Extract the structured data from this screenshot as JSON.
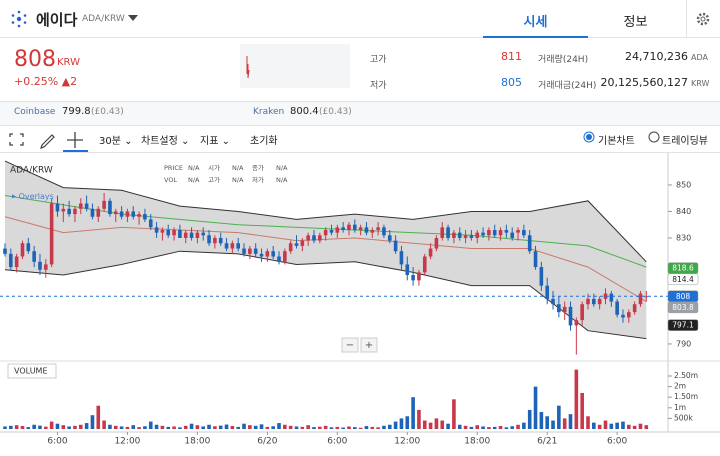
{
  "header": {
    "name": "에이다",
    "pair": "ADA/KRW",
    "tabs": [
      "시세",
      "정보"
    ]
  },
  "ticker": {
    "price": 808,
    "unit": "KRW",
    "change": "+0.25%",
    "change_amount": "▲2",
    "high_label": "고가",
    "high": 811,
    "low_label": "저가",
    "low": 805,
    "volume_label": "거래량(24H)",
    "volume": "24,710,236",
    "volume_unit": "ADA",
    "value_label": "거래대금(24H)",
    "value": "20,125,560,127",
    "value_unit": "KRW"
  },
  "exchanges": [
    {
      "name": "Coinbase",
      "price": 799.8,
      "converted": "(£0.43)"
    },
    {
      "name": "Kraken",
      "price": 800.4,
      "converted": "(£0.43)"
    }
  ],
  "toolbar": {
    "interval": "30분",
    "settings": "차트설정",
    "indicators": "지표",
    "reset": "초기화",
    "modes": [
      "기본차트",
      "트레이딩뷰"
    ]
  },
  "chart": {
    "type": "candlestick",
    "symbol": "ADA/KRW",
    "overlays": "Overlays",
    "info_labels": [
      [
        "PRICE",
        "시가",
        "종가"
      ],
      [
        "VOL",
        "고가",
        "저가"
      ]
    ],
    "info_value": "N/A",
    "volume_title": "VOLUME",
    "ylim": [
      784.7,
      861.3
    ],
    "yticks": [
      790,
      830,
      840,
      850
    ],
    "vlim": [
      0,
      3160000
    ],
    "vticks": [
      {
        "value": 500000,
        "label": "500k"
      },
      {
        "value": 1000000,
        "label": "1m"
      },
      {
        "value": 1500000,
        "label": "1.50m"
      },
      {
        "value": 2000000,
        "label": "2m"
      },
      {
        "value": 2500000,
        "label": "2.50m"
      }
    ],
    "up_color": "#c9384a",
    "down_color": "#1d63b8",
    "time_labels": [
      {
        "index": 9,
        "label": "6:00"
      },
      {
        "index": 21,
        "label": "12:00"
      },
      {
        "index": 33,
        "label": "18:00"
      },
      {
        "index": 45,
        "label": "6/20"
      },
      {
        "index": 57,
        "label": "6:00"
      },
      {
        "index": 69,
        "label": "12:00"
      },
      {
        "index": 81,
        "label": "18:00"
      },
      {
        "index": 93,
        "label": "6/21"
      },
      {
        "index": 105,
        "label": "6:00"
      }
    ],
    "candles": [
      [
        826,
        828,
        823,
        824,
        120000
      ],
      [
        824,
        826,
        818,
        819,
        150000
      ],
      [
        819,
        824,
        817,
        823,
        180000
      ],
      [
        823,
        829,
        822,
        828,
        140000
      ],
      [
        828,
        830,
        824,
        825,
        90000
      ],
      [
        825,
        827,
        819,
        821,
        200000
      ],
      [
        821,
        824,
        816,
        818,
        160000
      ],
      [
        818,
        822,
        815,
        820,
        110000
      ],
      [
        820,
        845,
        819,
        843,
        350000
      ],
      [
        843,
        846,
        838,
        840,
        250000
      ],
      [
        840,
        843,
        836,
        841,
        180000
      ],
      [
        841,
        844,
        838,
        839,
        120000
      ],
      [
        839,
        842,
        836,
        841,
        150000
      ],
      [
        841,
        845,
        839,
        843,
        200000
      ],
      [
        843,
        846,
        840,
        841,
        280000
      ],
      [
        841,
        843,
        837,
        838,
        650000
      ],
      [
        838,
        842,
        836,
        841,
        1100000
      ],
      [
        841,
        847,
        840,
        844,
        400000
      ],
      [
        844,
        845,
        838,
        839,
        200000
      ],
      [
        839,
        841,
        836,
        840,
        150000
      ],
      [
        840,
        842,
        837,
        838,
        120000
      ],
      [
        838,
        841,
        836,
        840,
        100000
      ],
      [
        840,
        842,
        837,
        838,
        180000
      ],
      [
        838,
        840,
        835,
        839,
        90000
      ],
      [
        839,
        841,
        836,
        837,
        130000
      ],
      [
        837,
        839,
        833,
        834,
        350000
      ],
      [
        834,
        836,
        830,
        832,
        200000
      ],
      [
        832,
        834,
        829,
        833,
        150000
      ],
      [
        833,
        835,
        830,
        831,
        100000
      ],
      [
        831,
        834,
        829,
        833,
        120000
      ],
      [
        833,
        835,
        830,
        830,
        80000
      ],
      [
        830,
        833,
        828,
        832,
        150000
      ],
      [
        832,
        834,
        829,
        830,
        250000
      ],
      [
        830,
        833,
        828,
        832,
        180000
      ],
      [
        832,
        834,
        829,
        831,
        120000
      ],
      [
        831,
        833,
        827,
        828,
        200000
      ],
      [
        828,
        831,
        826,
        830,
        130000
      ],
      [
        830,
        832,
        827,
        828,
        160000
      ],
      [
        828,
        830,
        825,
        826,
        210000
      ],
      [
        826,
        829,
        824,
        828,
        140000
      ],
      [
        828,
        830,
        825,
        826,
        100000
      ],
      [
        826,
        828,
        823,
        824,
        250000
      ],
      [
        824,
        827,
        822,
        826,
        180000
      ],
      [
        826,
        828,
        823,
        824,
        150000
      ],
      [
        824,
        826,
        821,
        823,
        220000
      ],
      [
        823,
        826,
        821,
        825,
        100000
      ],
      [
        825,
        827,
        822,
        823,
        130000
      ],
      [
        823,
        825,
        820,
        821,
        280000
      ],
      [
        821,
        826,
        820,
        825,
        200000
      ],
      [
        825,
        829,
        824,
        828,
        150000
      ],
      [
        828,
        831,
        826,
        827,
        120000
      ],
      [
        827,
        830,
        825,
        829,
        100000
      ],
      [
        829,
        832,
        827,
        831,
        180000
      ],
      [
        831,
        833,
        828,
        829,
        90000
      ],
      [
        829,
        832,
        828,
        831,
        110000
      ],
      [
        831,
        834,
        829,
        833,
        150000
      ],
      [
        833,
        835,
        831,
        832,
        80000
      ],
      [
        832,
        835,
        830,
        834,
        100000
      ],
      [
        834,
        836,
        832,
        833,
        70000
      ],
      [
        833,
        836,
        831,
        835,
        120000
      ],
      [
        835,
        837,
        832,
        833,
        90000
      ],
      [
        833,
        835,
        831,
        834,
        60000
      ],
      [
        834,
        836,
        831,
        832,
        140000
      ],
      [
        832,
        834,
        830,
        833,
        100000
      ],
      [
        833,
        836,
        831,
        834,
        80000
      ],
      [
        834,
        835,
        830,
        831,
        150000
      ],
      [
        831,
        833,
        828,
        829,
        200000
      ],
      [
        829,
        831,
        824,
        825,
        350000
      ],
      [
        825,
        827,
        818,
        820,
        500000
      ],
      [
        820,
        823,
        814,
        816,
        600000
      ],
      [
        816,
        819,
        812,
        814,
        1500000
      ],
      [
        814,
        818,
        812,
        817,
        900000
      ],
      [
        817,
        824,
        816,
        823,
        400000
      ],
      [
        823,
        828,
        822,
        826,
        300000
      ],
      [
        826,
        831,
        825,
        830,
        500000
      ],
      [
        830,
        836,
        829,
        834,
        400000
      ],
      [
        834,
        835,
        829,
        830,
        250000
      ],
      [
        830,
        833,
        828,
        832,
        1400000
      ],
      [
        832,
        834,
        829,
        830,
        200000
      ],
      [
        830,
        833,
        828,
        831,
        150000
      ],
      [
        831,
        833,
        829,
        830,
        100000
      ],
      [
        830,
        833,
        828,
        832,
        180000
      ],
      [
        832,
        834,
        830,
        831,
        120000
      ],
      [
        831,
        834,
        829,
        833,
        90000
      ],
      [
        833,
        835,
        830,
        831,
        100000
      ],
      [
        831,
        834,
        829,
        833,
        140000
      ],
      [
        833,
        835,
        830,
        832,
        80000
      ],
      [
        832,
        834,
        829,
        830,
        130000
      ],
      [
        832,
        834,
        829,
        833,
        200000
      ],
      [
        833,
        835,
        830,
        831,
        300000
      ],
      [
        831,
        833,
        824,
        825,
        900000
      ],
      [
        825,
        827,
        818,
        819,
        2000000
      ],
      [
        819,
        821,
        810,
        812,
        800000
      ],
      [
        812,
        815,
        805,
        807,
        600000
      ],
      [
        807,
        810,
        803,
        805,
        400000
      ],
      [
        805,
        808,
        800,
        802,
        1100000
      ],
      [
        802,
        806,
        799,
        804,
        500000
      ],
      [
        804,
        806,
        795,
        797,
        700000
      ],
      [
        797,
        800,
        786,
        799,
        2800000
      ],
      [
        799,
        806,
        797,
        805,
        1700000
      ],
      [
        805,
        809,
        803,
        807,
        600000
      ],
      [
        807,
        809,
        804,
        805,
        300000
      ],
      [
        805,
        808,
        803,
        807,
        200000
      ],
      [
        807,
        811,
        805,
        809,
        400000
      ],
      [
        809,
        810,
        804,
        806,
        250000
      ],
      [
        806,
        807,
        800,
        801,
        300000
      ],
      [
        801,
        803,
        798,
        800,
        350000
      ],
      [
        800,
        803,
        798,
        802,
        200000
      ],
      [
        802,
        806,
        801,
        805,
        150000
      ],
      [
        805,
        810,
        804,
        809,
        250000
      ],
      [
        808,
        810,
        806,
        808,
        180000
      ]
    ],
    "bollinger": {
      "index": [
        0,
        10,
        20,
        30,
        40,
        50,
        60,
        70,
        80,
        90,
        100,
        110
      ],
      "upper": [
        859,
        849,
        848,
        842,
        840,
        837,
        839,
        837,
        840,
        840,
        844,
        821
      ],
      "lower": [
        818,
        816,
        820,
        825,
        824,
        820,
        821,
        817,
        812,
        812,
        795,
        792
      ],
      "middle": [
        838,
        832,
        834,
        833,
        832,
        829,
        830,
        828,
        826,
        826,
        819,
        806
      ]
    },
    "long_ma": {
      "index": [
        0,
        20,
        40,
        60,
        80,
        100,
        110
      ],
      "values": [
        846,
        839,
        835,
        833,
        831,
        827,
        819
      ],
      "color": "#4caf50"
    },
    "price_tags": [
      {
        "value": 818.6,
        "color": "#3fa848"
      },
      {
        "value": 814.4,
        "color": "#ffffff"
      },
      {
        "value": 808,
        "color": "#1e6fd6"
      },
      {
        "value": 803.8,
        "color": "#9aa0a6"
      },
      {
        "value": 797.1,
        "color": "#222222"
      }
    ]
  }
}
